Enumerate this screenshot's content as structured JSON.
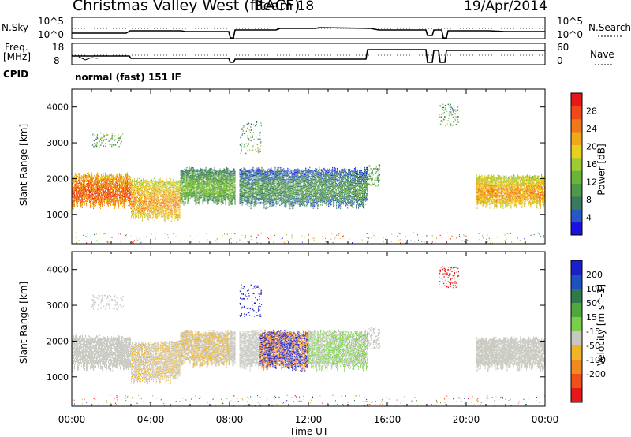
{
  "header": {
    "station": "Christmas Valley West (fitACF)",
    "beam": "Beam 18",
    "date": "19/Apr/2014"
  },
  "strips": {
    "nsky_label": "N.Sky",
    "nsky_ticks": [
      "10^5",
      "10^0"
    ],
    "nsearch_label": "N.Search",
    "nsearch_ticks": [
      "10^5",
      "10^0"
    ],
    "freq_label_1": "Freq.",
    "freq_label_2": "[MHz]",
    "freq_ticks": [
      "18",
      "8"
    ],
    "nave_label": "Nave",
    "nave_ticks": [
      "60",
      "0"
    ],
    "cpid_label": "CPID",
    "cpid_text": "normal (fast) 151 IF"
  },
  "chart_data": [
    {
      "type": "heatmap",
      "panel": "power",
      "ylabel": "Slant Range [km]",
      "ylim": [
        180,
        4500
      ],
      "yticks": [
        1000,
        2000,
        3000,
        4000
      ],
      "xlim_hours": [
        0,
        24
      ],
      "colorbar": {
        "label": "Power [dB]",
        "range": [
          0,
          32
        ],
        "ticks": [
          4,
          8,
          12,
          16,
          20,
          24,
          28
        ],
        "colors": [
          "#1a10e0",
          "#2858c8",
          "#3a7a5c",
          "#4e9a4a",
          "#6ab43a",
          "#9ccc32",
          "#e8d020",
          "#f0a818",
          "#f07818",
          "#f04818",
          "#e81818"
        ]
      },
      "echo_bands": [
        {
          "t0": 0.0,
          "t1": 3.0,
          "r0": 1300,
          "r1": 2150,
          "level": 28
        },
        {
          "t0": 3.0,
          "t1": 5.5,
          "r0": 950,
          "r1": 2000,
          "level": 24
        },
        {
          "t0": 5.5,
          "t1": 8.3,
          "r0": 1400,
          "r1": 2300,
          "level": 14
        },
        {
          "t0": 8.5,
          "t1": 15.0,
          "r0": 1300,
          "r1": 2300,
          "level": 10
        },
        {
          "t0": 20.5,
          "t1": 24.0,
          "r0": 1300,
          "r1": 2100,
          "level": 24
        }
      ]
    },
    {
      "type": "heatmap",
      "panel": "velocity",
      "ylabel": "Slant Range [km]",
      "xlabel": "Time UT",
      "ylim": [
        180,
        4500
      ],
      "yticks": [
        1000,
        2000,
        3000,
        4000
      ],
      "xticks": [
        "00:00",
        "04:00",
        "08:00",
        "12:00",
        "16:00",
        "20:00",
        "00:00"
      ],
      "xlim_hours": [
        0,
        24
      ],
      "colorbar": {
        "label": "Velocity [m s^-1]",
        "ticks": [
          "200",
          "100",
          "50",
          "15",
          "-15",
          "-50",
          "-100",
          "-200"
        ],
        "colors": [
          "#1a20c8",
          "#1e50c0",
          "#2e7a4a",
          "#4ea83c",
          "#78d048",
          "#c8c8c0",
          "#f0b428",
          "#f08a20",
          "#f05018",
          "#e81818"
        ]
      }
    }
  ]
}
